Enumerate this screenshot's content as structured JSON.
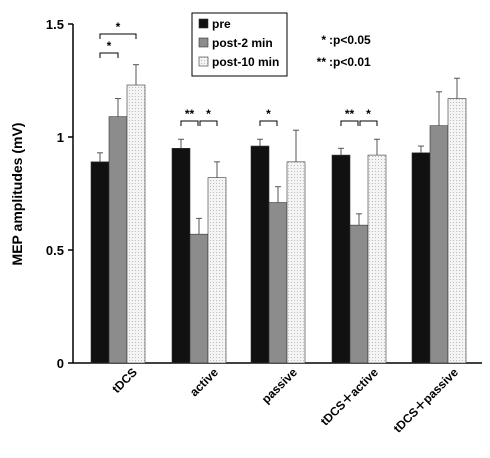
{
  "chart_data": {
    "type": "bar",
    "title": "",
    "xlabel": "",
    "ylabel": "MEP amplitudes (mV)",
    "ylim": [
      0,
      1.5
    ],
    "yticks": [
      "0",
      "0.5",
      "1",
      "1.5"
    ],
    "categories": [
      "tDCS",
      "active",
      "passive",
      "tDCS＋active",
      "tDCS＋passive"
    ],
    "series": [
      {
        "name": "pre",
        "values": [
          0.89,
          0.95,
          0.96,
          0.92,
          0.93
        ],
        "errors": [
          0.04,
          0.04,
          0.03,
          0.03,
          0.03
        ],
        "color": "#111111"
      },
      {
        "name": "post-2 min",
        "values": [
          1.09,
          0.57,
          0.71,
          0.61,
          1.05
        ],
        "errors": [
          0.08,
          0.07,
          0.07,
          0.05,
          0.15
        ],
        "color": "#8c8c8c"
      },
      {
        "name": "post-10 min",
        "values": [
          1.23,
          0.82,
          0.89,
          0.92,
          1.17
        ],
        "errors": [
          0.09,
          0.07,
          0.14,
          0.07,
          0.09
        ],
        "color": "#eeeeee"
      }
    ],
    "significance": [
      {
        "category": 0,
        "from": 0,
        "to": 1,
        "label": "*"
      },
      {
        "category": 0,
        "from": 0,
        "to": 2,
        "label": "*"
      },
      {
        "category": 1,
        "from": 0,
        "to": 1,
        "label": "**"
      },
      {
        "category": 1,
        "from": 1,
        "to": 2,
        "label": "*"
      },
      {
        "category": 2,
        "from": 0,
        "to": 1,
        "label": "*"
      },
      {
        "category": 3,
        "from": 0,
        "to": 1,
        "label": "**"
      },
      {
        "category": 3,
        "from": 1,
        "to": 2,
        "label": "*"
      }
    ],
    "sig_legend": [
      {
        "symbol": "*",
        "text": ":p<0.05"
      },
      {
        "symbol": "**",
        "text": ":p<0.01"
      }
    ],
    "legend_position": "top-center",
    "grid": false
  }
}
